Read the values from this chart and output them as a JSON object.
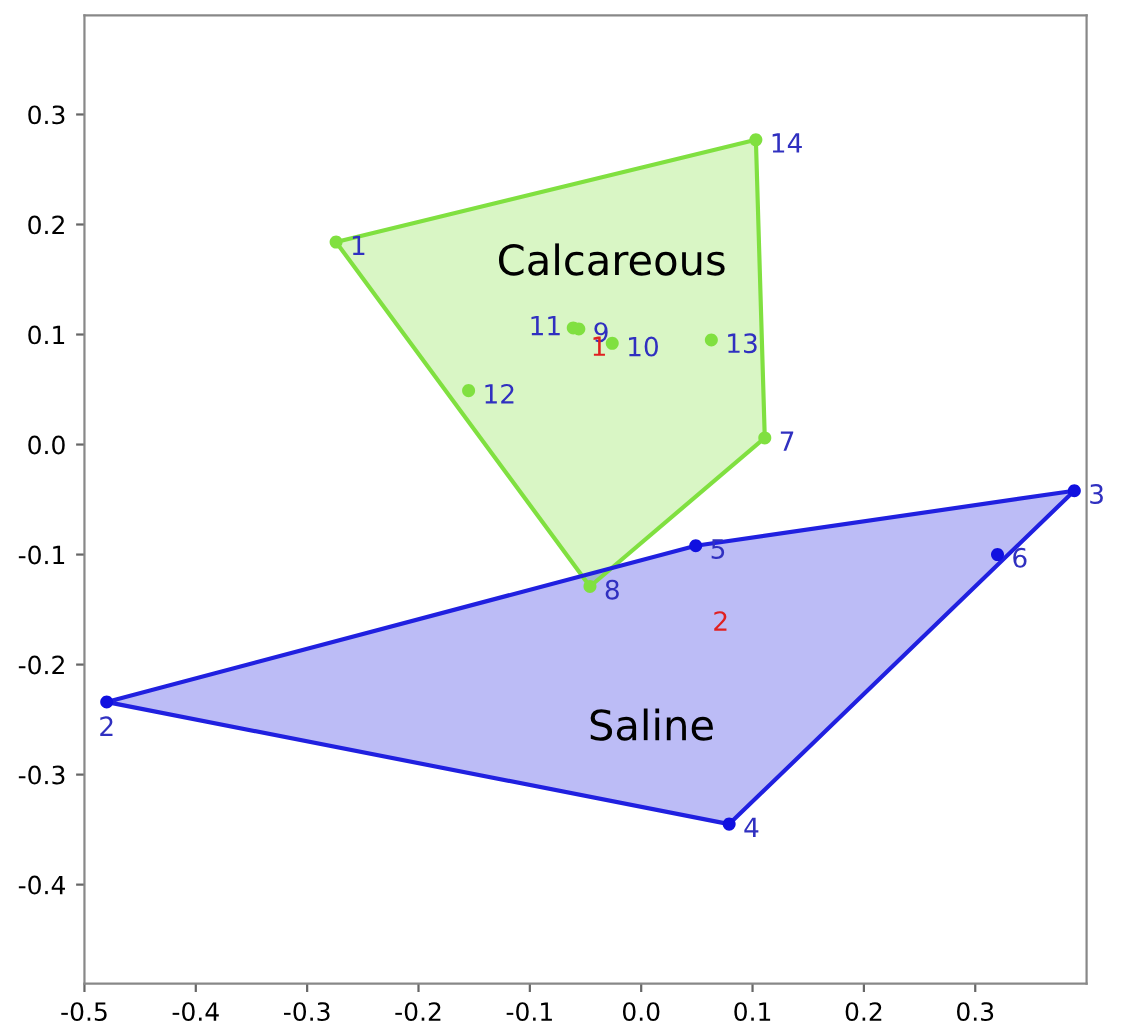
{
  "chart_data": {
    "type": "scatter",
    "xlim": [
      -0.5,
      0.4
    ],
    "ylim": [
      -0.49,
      0.39
    ],
    "xticks": [
      -0.5,
      -0.4,
      -0.3,
      -0.2,
      -0.1,
      {
        "value": 0,
        "label": "0.0"
      },
      0.1,
      0.2,
      0.3
    ],
    "yticks": [
      -0.4,
      -0.3,
      -0.2,
      -0.1,
      {
        "value": 0,
        "label": "0.0"
      },
      0.1,
      0.2,
      0.3
    ],
    "grid": false,
    "legend": false,
    "series": [
      {
        "type": "area",
        "name": "Calcareous",
        "color": "#80e040",
        "x": [
          -0.274,
          0.103,
          0.111,
          -0.046
        ],
        "values": [
          0.184,
          0.277,
          0.006,
          -0.129
        ]
      },
      {
        "type": "area",
        "name": "Saline",
        "color": "#2020e0",
        "x": [
          -0.48,
          0.049,
          0.389,
          0.079
        ],
        "values": [
          -0.234,
          -0.092,
          -0.042,
          -0.345
        ]
      },
      {
        "color": "#80e040",
        "marker": "circle",
        "x": [
          -0.274,
          0.103,
          0.111,
          -0.046,
          -0.155,
          -0.061,
          -0.056,
          -0.026,
          0.063
        ],
        "values": [
          0.184,
          0.277,
          0.006,
          -0.129,
          0.049,
          0.106,
          0.105,
          0.092,
          0.095
        ]
      },
      {
        "color": "#1010e0",
        "marker": "circle",
        "x": [
          -0.48,
          0.389,
          0.079,
          0.049,
          0.32
        ],
        "values": [
          -0.234,
          -0.042,
          -0.345,
          -0.092,
          -0.1
        ]
      }
    ],
    "annotations": [
      {
        "text": "1",
        "x": -0.274,
        "y": 0.184
      },
      {
        "text": "14",
        "x": 0.103,
        "y": 0.277
      },
      {
        "text": "7",
        "x": 0.111,
        "y": 0.006
      },
      {
        "text": "8",
        "x": -0.046,
        "y": -0.129
      },
      {
        "text": "12",
        "x": -0.155,
        "y": 0.049
      },
      {
        "text": "11",
        "x": -0.061,
        "y": 0.106
      },
      {
        "text": "9",
        "x": -0.056,
        "y": 0.105
      },
      {
        "text": "10",
        "x": -0.026,
        "y": 0.092
      },
      {
        "text": "13",
        "x": 0.063,
        "y": 0.095
      },
      {
        "text": "2",
        "x": -0.48,
        "y": -0.234
      },
      {
        "text": "3",
        "x": 0.389,
        "y": -0.042
      },
      {
        "text": "4",
        "x": 0.079,
        "y": -0.345
      },
      {
        "text": "5",
        "x": 0.049,
        "y": -0.092
      },
      {
        "text": "6",
        "x": 0.32,
        "y": -0.1
      },
      "1",
      "2"
    ]
  }
}
